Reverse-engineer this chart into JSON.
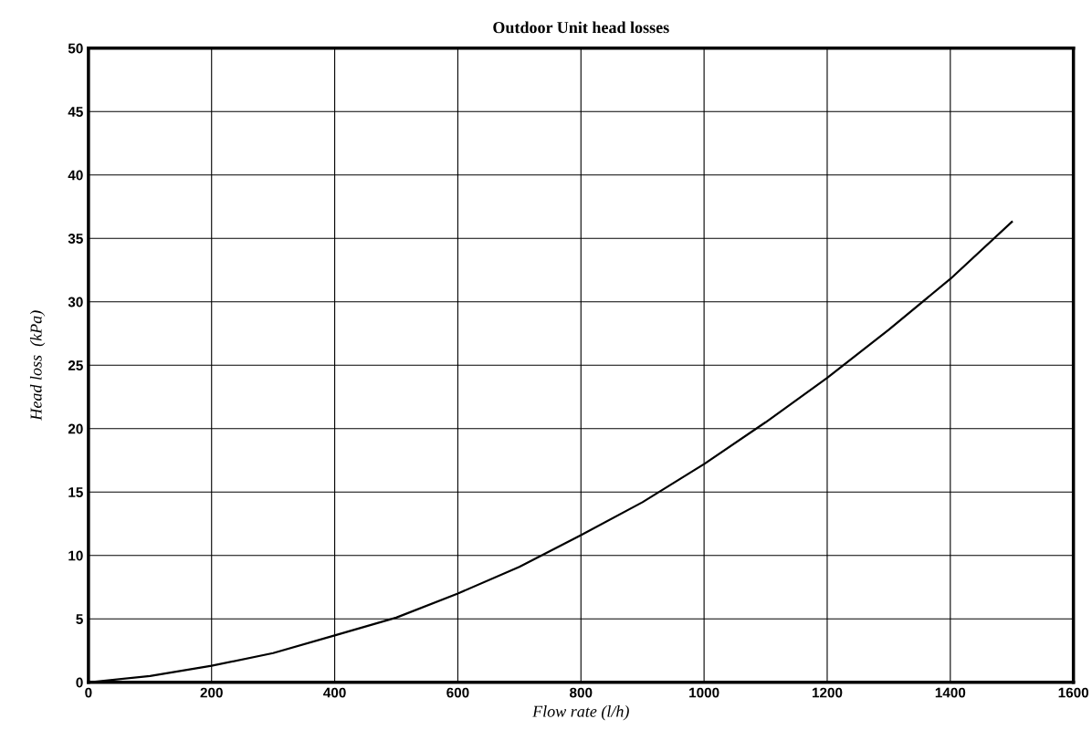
{
  "chart_data": {
    "type": "line",
    "title": "Outdoor Unit head losses",
    "xlabel": "Flow rate (l/h)",
    "ylabel": "Head loss  (kPa)",
    "x": [
      0,
      100,
      200,
      300,
      400,
      500,
      600,
      700,
      800,
      900,
      1000,
      1100,
      1200,
      1300,
      1400,
      1500
    ],
    "series": [
      {
        "color": "#000000",
        "values": [
          0,
          0.5,
          1.3,
          2.3,
          3.7,
          5.1,
          7.0,
          9.1,
          11.6,
          14.2,
          17.2,
          20.5,
          24.0,
          27.8,
          31.8,
          36.3
        ]
      }
    ],
    "xlim": [
      0,
      1600
    ],
    "xticks": [
      0,
      200,
      400,
      600,
      800,
      1000,
      1200,
      1400,
      1600
    ],
    "ylim": [
      0,
      50
    ],
    "yticks": [
      0,
      5,
      10,
      15,
      20,
      25,
      30,
      35,
      40,
      45,
      50
    ],
    "grid": true,
    "marker": "none",
    "line_style": "solid"
  }
}
